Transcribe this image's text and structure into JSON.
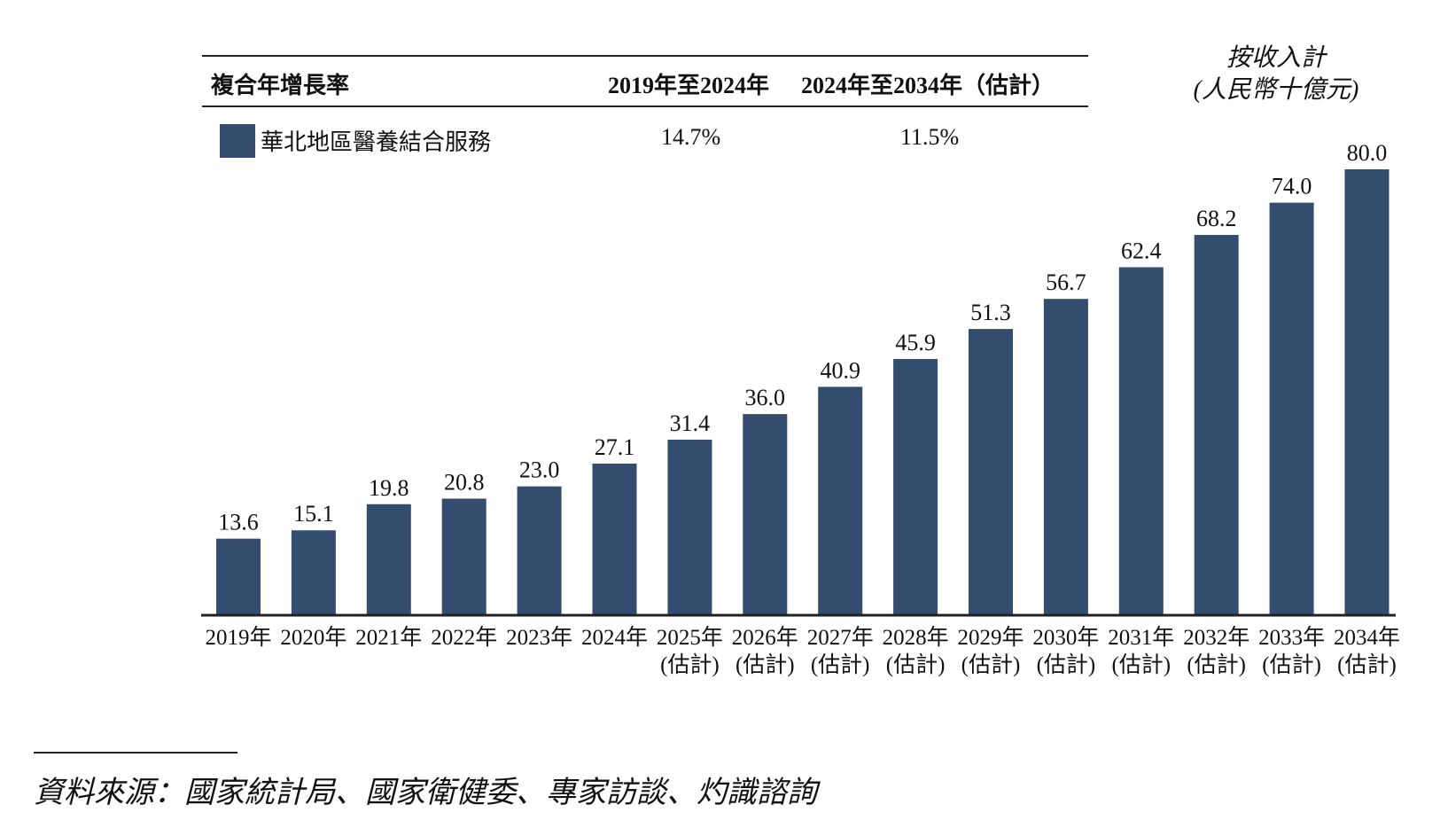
{
  "cagr_table": {
    "header_label": "複合年增長率",
    "col1_header": "2019年至2024年",
    "col2_header": "2024年至2034年（估計）",
    "row_label": "華北地區醫養結合服務",
    "col1_value": "14.7%",
    "col2_value": "11.5%"
  },
  "unit": {
    "line1": "按收入計",
    "line2": "(人民幣十億元)"
  },
  "source": "資料來源：國家統計局、國家衛健委、專家訪談、灼識諮詢",
  "colors": {
    "bar": "#344d6e",
    "axis": "#222222"
  },
  "chart_data": {
    "type": "bar",
    "categories": [
      [
        "2019年",
        ""
      ],
      [
        "2020年",
        ""
      ],
      [
        "2021年",
        ""
      ],
      [
        "2022年",
        ""
      ],
      [
        "2023年",
        ""
      ],
      [
        "2024年",
        ""
      ],
      [
        "2025年",
        "(估計)"
      ],
      [
        "2026年",
        "(估計)"
      ],
      [
        "2027年",
        "(估計)"
      ],
      [
        "2028年",
        "(估計)"
      ],
      [
        "2029年",
        "(估計)"
      ],
      [
        "2030年",
        "(估計)"
      ],
      [
        "2031年",
        "(估計)"
      ],
      [
        "2032年",
        "(估計)"
      ],
      [
        "2033年",
        "(估計)"
      ],
      [
        "2034年",
        "(估計)"
      ]
    ],
    "values": [
      13.6,
      15.1,
      19.8,
      20.8,
      23.0,
      27.1,
      31.4,
      36.0,
      40.9,
      45.9,
      51.3,
      56.7,
      62.4,
      68.2,
      74.0,
      80.0
    ],
    "value_labels": [
      "13.6",
      "15.1",
      "19.8",
      "20.8",
      "23.0",
      "27.1",
      "31.4",
      "36.0",
      "40.9",
      "45.9",
      "51.3",
      "56.7",
      "62.4",
      "68.2",
      "74.0",
      "80.0"
    ],
    "series": [
      {
        "name": "華北地區醫養結合服務"
      }
    ],
    "ylim": [
      0,
      80
    ]
  }
}
